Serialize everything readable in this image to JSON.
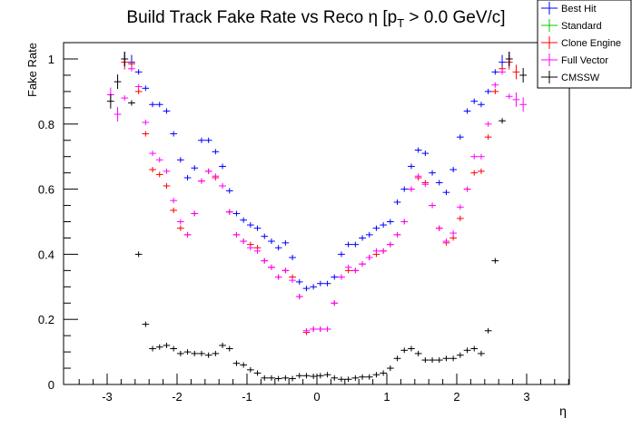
{
  "chart_data": {
    "type": "scatter",
    "title": "Build Track Fake Rate vs Reco η [p",
    "title_sub": "T",
    "title_rest": " > 0.0 GeV/c]",
    "xlabel": "η",
    "ylabel": "Fake Rate",
    "xlim": [
      -3.4,
      3.6
    ],
    "ylim": [
      0,
      1.05
    ],
    "xticks": [
      "-3",
      "-2",
      "-1",
      "0",
      "1",
      "2",
      "3"
    ],
    "yticks": [
      "0",
      "0.2",
      "0.4",
      "0.6",
      "0.8",
      "1"
    ],
    "bin_width": 0.1,
    "legend_position": "top-right",
    "series": [
      {
        "name": "Best Hit",
        "color": "#0000ff",
        "points": [
          [
            -2.75,
            1.0
          ],
          [
            -2.65,
            0.99
          ],
          [
            -2.55,
            0.96
          ],
          [
            -2.45,
            0.91
          ],
          [
            -2.35,
            0.86
          ],
          [
            -2.25,
            0.86
          ],
          [
            -2.15,
            0.84
          ],
          [
            -2.05,
            0.77
          ],
          [
            -1.95,
            0.69
          ],
          [
            -1.85,
            0.635
          ],
          [
            -1.75,
            0.665
          ],
          [
            -1.65,
            0.75
          ],
          [
            -1.55,
            0.75
          ],
          [
            -1.45,
            0.715
          ],
          [
            -1.35,
            0.67
          ],
          [
            -1.25,
            0.595
          ],
          [
            -1.15,
            0.525
          ],
          [
            -1.05,
            0.505
          ],
          [
            -0.95,
            0.49
          ],
          [
            -0.85,
            0.48
          ],
          [
            -0.75,
            0.455
          ],
          [
            -0.65,
            0.44
          ],
          [
            -0.55,
            0.42
          ],
          [
            -0.45,
            0.435
          ],
          [
            -0.35,
            0.39
          ],
          [
            -0.25,
            0.315
          ],
          [
            -0.15,
            0.295
          ],
          [
            -0.05,
            0.3
          ],
          [
            0.05,
            0.31
          ],
          [
            0.15,
            0.31
          ],
          [
            0.25,
            0.33
          ],
          [
            0.35,
            0.4
          ],
          [
            0.45,
            0.43
          ],
          [
            0.55,
            0.43
          ],
          [
            0.65,
            0.45
          ],
          [
            0.75,
            0.46
          ],
          [
            0.85,
            0.48
          ],
          [
            0.95,
            0.49
          ],
          [
            1.05,
            0.5
          ],
          [
            1.15,
            0.56
          ],
          [
            1.25,
            0.6
          ],
          [
            1.35,
            0.67
          ],
          [
            1.45,
            0.72
          ],
          [
            1.55,
            0.71
          ],
          [
            1.65,
            0.65
          ],
          [
            1.75,
            0.62
          ],
          [
            1.85,
            0.59
          ],
          [
            1.95,
            0.66
          ],
          [
            2.05,
            0.76
          ],
          [
            2.15,
            0.84
          ],
          [
            2.25,
            0.87
          ],
          [
            2.35,
            0.86
          ],
          [
            2.45,
            0.9
          ],
          [
            2.55,
            0.96
          ],
          [
            2.65,
            0.99
          ],
          [
            2.75,
            1.0
          ]
        ]
      },
      {
        "name": "Standard",
        "color": "#00cc00",
        "points": []
      },
      {
        "name": "Clone Engine",
        "color": "#ff0000",
        "points": [
          [
            -2.75,
            0.99
          ],
          [
            -2.65,
            0.985
          ],
          [
            -2.55,
            0.9
          ],
          [
            -2.45,
            0.77
          ],
          [
            -2.35,
            0.66
          ],
          [
            -2.25,
            0.645
          ],
          [
            -2.15,
            0.61
          ],
          [
            -2.05,
            0.535
          ],
          [
            -1.95,
            0.48
          ],
          [
            -1.85,
            0.46
          ],
          [
            -1.75,
            0.525
          ],
          [
            -1.65,
            0.625
          ],
          [
            -1.55,
            0.655
          ],
          [
            -1.45,
            0.635
          ],
          [
            -1.35,
            0.61
          ],
          [
            -1.25,
            0.53
          ],
          [
            -1.15,
            0.46
          ],
          [
            -1.05,
            0.44
          ],
          [
            -0.95,
            0.43
          ],
          [
            -0.85,
            0.42
          ],
          [
            -0.75,
            0.38
          ],
          [
            -0.65,
            0.36
          ],
          [
            -0.55,
            0.33
          ],
          [
            -0.45,
            0.35
          ],
          [
            -0.35,
            0.33
          ],
          [
            -0.25,
            0.27
          ],
          [
            -0.15,
            0.16
          ],
          [
            -0.05,
            0.17
          ],
          [
            0.05,
            0.17
          ],
          [
            0.15,
            0.17
          ],
          [
            0.25,
            0.25
          ],
          [
            0.35,
            0.33
          ],
          [
            0.45,
            0.35
          ],
          [
            0.55,
            0.35
          ],
          [
            0.65,
            0.37
          ],
          [
            0.75,
            0.39
          ],
          [
            0.85,
            0.4
          ],
          [
            0.95,
            0.41
          ],
          [
            1.05,
            0.43
          ],
          [
            1.15,
            0.46
          ],
          [
            1.25,
            0.5
          ],
          [
            1.35,
            0.6
          ],
          [
            1.45,
            0.635
          ],
          [
            1.55,
            0.62
          ],
          [
            1.65,
            0.55
          ],
          [
            1.75,
            0.48
          ],
          [
            1.85,
            0.435
          ],
          [
            1.95,
            0.45
          ],
          [
            2.05,
            0.51
          ],
          [
            2.15,
            0.6
          ],
          [
            2.25,
            0.65
          ],
          [
            2.35,
            0.655
          ],
          [
            2.45,
            0.76
          ],
          [
            2.55,
            0.9
          ],
          [
            2.65,
            0.97
          ],
          [
            2.75,
            0.99
          ],
          [
            2.85,
            0.96
          ]
        ]
      },
      {
        "name": "Full Vector",
        "color": "#ff00ff",
        "points": [
          [
            -2.95,
            0.89
          ],
          [
            -2.85,
            0.83
          ],
          [
            -2.75,
            0.88
          ],
          [
            -2.65,
            0.97
          ],
          [
            -2.55,
            0.915
          ],
          [
            -2.45,
            0.805
          ],
          [
            -2.35,
            0.71
          ],
          [
            -2.25,
            0.69
          ],
          [
            -2.15,
            0.655
          ],
          [
            -2.05,
            0.565
          ],
          [
            -1.95,
            0.5
          ],
          [
            -1.85,
            0.46
          ],
          [
            -1.75,
            0.525
          ],
          [
            -1.65,
            0.625
          ],
          [
            -1.55,
            0.655
          ],
          [
            -1.45,
            0.64
          ],
          [
            -1.35,
            0.61
          ],
          [
            -1.25,
            0.53
          ],
          [
            -1.15,
            0.46
          ],
          [
            -1.05,
            0.44
          ],
          [
            -0.95,
            0.42
          ],
          [
            -0.85,
            0.41
          ],
          [
            -0.75,
            0.38
          ],
          [
            -0.65,
            0.36
          ],
          [
            -0.55,
            0.33
          ],
          [
            -0.45,
            0.35
          ],
          [
            -0.35,
            0.32
          ],
          [
            -0.25,
            0.27
          ],
          [
            -0.15,
            0.165
          ],
          [
            -0.05,
            0.17
          ],
          [
            0.05,
            0.17
          ],
          [
            0.15,
            0.17
          ],
          [
            0.25,
            0.25
          ],
          [
            0.35,
            0.33
          ],
          [
            0.45,
            0.36
          ],
          [
            0.55,
            0.35
          ],
          [
            0.65,
            0.37
          ],
          [
            0.75,
            0.39
          ],
          [
            0.85,
            0.41
          ],
          [
            0.95,
            0.41
          ],
          [
            1.05,
            0.43
          ],
          [
            1.15,
            0.46
          ],
          [
            1.25,
            0.5
          ],
          [
            1.35,
            0.6
          ],
          [
            1.45,
            0.64
          ],
          [
            1.55,
            0.615
          ],
          [
            1.65,
            0.55
          ],
          [
            1.75,
            0.48
          ],
          [
            1.85,
            0.44
          ],
          [
            1.95,
            0.465
          ],
          [
            2.05,
            0.545
          ],
          [
            2.15,
            0.6
          ],
          [
            2.25,
            0.7
          ],
          [
            2.35,
            0.7
          ],
          [
            2.45,
            0.8
          ],
          [
            2.55,
            0.92
          ],
          [
            2.65,
            0.96
          ],
          [
            2.75,
            0.885
          ],
          [
            2.85,
            0.875
          ],
          [
            2.95,
            0.86
          ]
        ]
      },
      {
        "name": "CMSSW",
        "color": "#000000",
        "points": [
          [
            -2.95,
            0.87
          ],
          [
            -2.85,
            0.93
          ],
          [
            -2.75,
            1.0
          ],
          [
            -2.65,
            0.865
          ],
          [
            -2.55,
            0.4
          ],
          [
            -2.45,
            0.185
          ],
          [
            -2.35,
            0.11
          ],
          [
            -2.25,
            0.115
          ],
          [
            -2.15,
            0.12
          ],
          [
            -2.05,
            0.11
          ],
          [
            -1.95,
            0.095
          ],
          [
            -1.85,
            0.1
          ],
          [
            -1.75,
            0.095
          ],
          [
            -1.65,
            0.095
          ],
          [
            -1.55,
            0.09
          ],
          [
            -1.45,
            0.095
          ],
          [
            -1.35,
            0.12
          ],
          [
            -1.25,
            0.11
          ],
          [
            -1.15,
            0.065
          ],
          [
            -1.05,
            0.06
          ],
          [
            -0.95,
            0.045
          ],
          [
            -0.85,
            0.035
          ],
          [
            -0.75,
            0.02
          ],
          [
            -0.65,
            0.02
          ],
          [
            -0.55,
            0.018
          ],
          [
            -0.45,
            0.02
          ],
          [
            -0.35,
            0.018
          ],
          [
            -0.25,
            0.027
          ],
          [
            -0.15,
            0.027
          ],
          [
            -0.05,
            0.025
          ],
          [
            0.05,
            0.027
          ],
          [
            0.15,
            0.03
          ],
          [
            0.25,
            0.02
          ],
          [
            0.35,
            0.016
          ],
          [
            0.45,
            0.016
          ],
          [
            0.55,
            0.02
          ],
          [
            0.65,
            0.023
          ],
          [
            0.75,
            0.023
          ],
          [
            0.85,
            0.03
          ],
          [
            0.95,
            0.035
          ],
          [
            1.05,
            0.05
          ],
          [
            1.15,
            0.08
          ],
          [
            1.25,
            0.105
          ],
          [
            1.35,
            0.11
          ],
          [
            1.45,
            0.095
          ],
          [
            1.55,
            0.075
          ],
          [
            1.65,
            0.075
          ],
          [
            1.75,
            0.075
          ],
          [
            1.85,
            0.08
          ],
          [
            1.95,
            0.08
          ],
          [
            2.05,
            0.09
          ],
          [
            2.15,
            0.105
          ],
          [
            2.25,
            0.11
          ],
          [
            2.35,
            0.095
          ],
          [
            2.45,
            0.165
          ],
          [
            2.55,
            0.38
          ],
          [
            2.65,
            0.81
          ],
          [
            2.75,
            1.0
          ],
          [
            2.95,
            0.95
          ]
        ]
      }
    ]
  }
}
